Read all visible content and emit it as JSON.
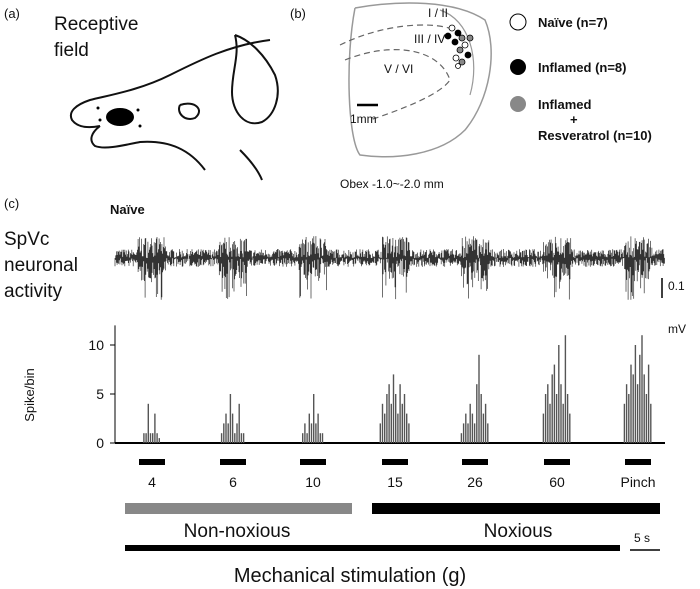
{
  "panel_a": {
    "label": "(a)",
    "title_line1": "Receptive",
    "title_line2": "field"
  },
  "panel_b": {
    "label": "(b)",
    "layers": [
      "I / II",
      "III / IV",
      "V / VI"
    ],
    "scale": "1mm",
    "caption": "Obex -1.0~-2.0 mm"
  },
  "legend": {
    "naive": "Naïve (n=7)",
    "inflamed": "Inflamed (n=8)",
    "resv_line1": "Inflamed",
    "resv_plus": "+",
    "resv_line2": "Resveratrol (n=10)"
  },
  "panel_c": {
    "label": "(c)",
    "group": "Naïve",
    "trace_label": [
      "SpVc",
      "neuronal",
      "activity"
    ],
    "volt_scale": [
      "0.1",
      "mV"
    ],
    "ylabel": "Spike/bin",
    "ylim": [
      0,
      12
    ],
    "yticks": [
      0,
      5,
      10
    ],
    "stimuli": [
      "4",
      "6",
      "10",
      "15",
      "26",
      "60",
      "Pinch"
    ],
    "bursts": [
      {
        "values": [
          1,
          1,
          4,
          1,
          1,
          3,
          1,
          0.5
        ]
      },
      {
        "values": [
          1,
          2,
          3,
          2,
          5,
          3,
          1,
          2,
          4,
          1,
          1
        ]
      },
      {
        "values": [
          1,
          2,
          1,
          3,
          2,
          5,
          2,
          3,
          1,
          1
        ]
      },
      {
        "values": [
          2,
          4,
          3,
          5,
          6,
          4,
          7,
          5,
          3,
          6,
          4,
          5,
          3,
          2
        ]
      },
      {
        "values": [
          1,
          2,
          3,
          2,
          4,
          3,
          2,
          6,
          9,
          5,
          3,
          4,
          2
        ]
      },
      {
        "values": [
          3,
          5,
          6,
          4,
          7,
          8,
          5,
          10,
          6,
          4,
          11,
          5,
          3
        ]
      },
      {
        "values": [
          4,
          6,
          5,
          8,
          7,
          10,
          6,
          9,
          11,
          7,
          5,
          8,
          4
        ]
      }
    ],
    "category_nonnoxious": "Non-noxious",
    "category_noxious": "Noxious",
    "time_scale": "5 s",
    "xlabel": "Mechanical stimulation (g)"
  }
}
